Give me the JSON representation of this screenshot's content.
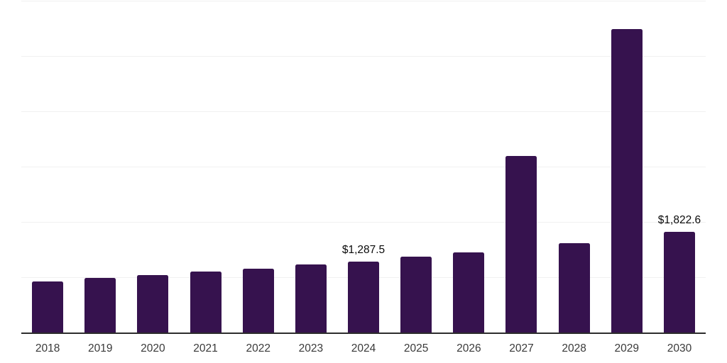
{
  "chart": {
    "background_color": "#ffffff",
    "bar_color": "#36124e",
    "axis_color": "#2d2d2d",
    "gridline_color": "#f0f0f0",
    "tick_label_color": "#3a3a3a",
    "data_label_color": "#0a0a0a"
  },
  "chart_data": {
    "type": "bar",
    "title": "",
    "xlabel": "",
    "ylabel": "",
    "categories": [
      "2018",
      "2019",
      "2020",
      "2021",
      "2022",
      "2023",
      "2024",
      "2025",
      "2026",
      "2027",
      "2028",
      "2029",
      "2030"
    ],
    "values": [
      920,
      985,
      1040,
      1100,
      1150,
      1230,
      1287.5,
      1370,
      1445,
      3190,
      1610,
      5490,
      1822.6
    ],
    "data_labels": {
      "2024": "$1,287.5",
      "2030": "$1,822.6"
    },
    "ylim": [
      0,
      6000
    ],
    "grid": "horizontal",
    "grid_interval": 1000,
    "y_axis_labels_visible": false,
    "legend": "none"
  }
}
